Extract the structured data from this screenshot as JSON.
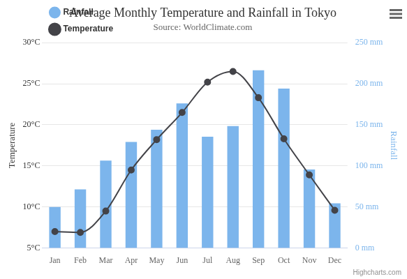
{
  "chart_data": {
    "type": "bar",
    "title": "Average Monthly Temperature and Rainfall in Tokyo",
    "subtitle": "Source: WorldClimate.com",
    "credits": "Highcharts.com",
    "categories": [
      "Jan",
      "Feb",
      "Mar",
      "Apr",
      "May",
      "Jun",
      "Jul",
      "Aug",
      "Sep",
      "Oct",
      "Nov",
      "Dec"
    ],
    "series": [
      {
        "name": "Rainfall",
        "type": "bar",
        "color": "#7cb5ec",
        "axis": "y2",
        "values": [
          49.9,
          71.5,
          106.4,
          129.2,
          144.0,
          176.0,
          135.6,
          148.5,
          216.4,
          194.1,
          95.6,
          54.4
        ]
      },
      {
        "name": "Temperature",
        "type": "line",
        "color": "#434348",
        "marker": "circle",
        "line_style": "solid",
        "values": [
          7.0,
          6.9,
          9.5,
          14.5,
          18.2,
          21.5,
          25.2,
          26.5,
          23.3,
          18.3,
          13.9,
          9.6
        ]
      }
    ],
    "ylabel": "Temperature",
    "y2label": "Rainfall",
    "ylim": [
      5,
      30
    ],
    "yticks": [
      {
        "value": 5,
        "label": "5°C"
      },
      {
        "value": 10,
        "label": "10°C"
      },
      {
        "value": 15,
        "label": "15°C"
      },
      {
        "value": 20,
        "label": "20°C"
      },
      {
        "value": 25,
        "label": "25°C"
      },
      {
        "value": 30,
        "label": "30°C"
      }
    ],
    "y2lim": [
      0,
      250
    ],
    "y2ticks": [
      {
        "value": 0,
        "label": "0 mm"
      },
      {
        "value": 50,
        "label": "50 mm"
      },
      {
        "value": 100,
        "label": "100 mm"
      },
      {
        "value": 150,
        "label": "150 mm"
      },
      {
        "value": 200,
        "label": "200 mm"
      },
      {
        "value": 250,
        "label": "250 mm"
      }
    ],
    "grid": true,
    "legend": "upper left"
  }
}
